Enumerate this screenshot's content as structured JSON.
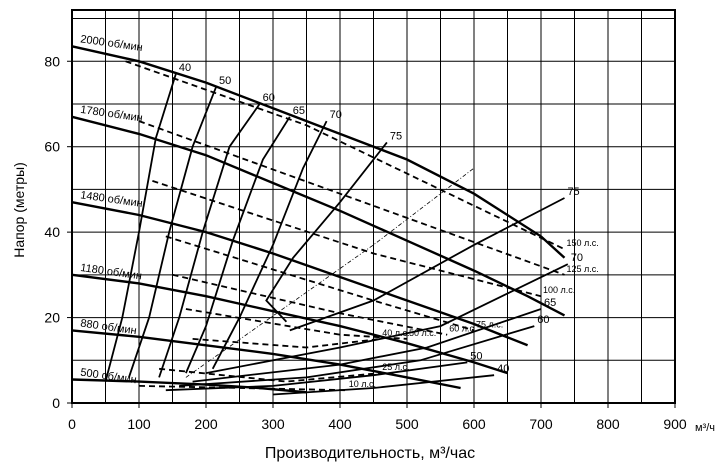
{
  "chart_data": {
    "type": "line",
    "title": "",
    "xlabel": "Производительность, м³/час",
    "ylabel": "Напор (метры)",
    "x_unit_label": "м³/ч",
    "xlim": [
      0,
      900
    ],
    "ylim": [
      0,
      92
    ],
    "x_ticks": [
      0,
      100,
      200,
      300,
      400,
      500,
      600,
      700,
      800,
      900
    ],
    "y_ticks": [
      0,
      20,
      40,
      60,
      80
    ],
    "grid": true,
    "speed_curves": [
      {
        "name": "2000 об/мин",
        "points": [
          [
            0,
            83.5
          ],
          [
            100,
            80
          ],
          [
            200,
            75
          ],
          [
            300,
            69
          ],
          [
            400,
            63
          ],
          [
            500,
            57
          ],
          [
            600,
            49
          ],
          [
            700,
            39
          ],
          [
            735,
            34
          ]
        ]
      },
      {
        "name": "1780 об/мин",
        "points": [
          [
            0,
            67
          ],
          [
            100,
            63
          ],
          [
            200,
            58
          ],
          [
            300,
            51.5
          ],
          [
            400,
            45
          ],
          [
            500,
            38
          ],
          [
            600,
            31
          ],
          [
            680,
            25
          ],
          [
            735,
            20.5
          ]
        ]
      },
      {
        "name": "1480 об/мин",
        "points": [
          [
            0,
            47
          ],
          [
            100,
            44
          ],
          [
            200,
            40
          ],
          [
            300,
            35
          ],
          [
            400,
            29.5
          ],
          [
            500,
            24
          ],
          [
            600,
            18.5
          ],
          [
            680,
            13.5
          ]
        ]
      },
      {
        "name": "1180 об/мин",
        "points": [
          [
            0,
            30
          ],
          [
            100,
            28
          ],
          [
            200,
            25
          ],
          [
            300,
            21.5
          ],
          [
            400,
            18
          ],
          [
            500,
            14
          ],
          [
            600,
            9.5
          ],
          [
            650,
            7
          ]
        ]
      },
      {
        "name": "880 об/мин",
        "points": [
          [
            0,
            17
          ],
          [
            100,
            15.5
          ],
          [
            200,
            13.5
          ],
          [
            300,
            11.5
          ],
          [
            400,
            9
          ],
          [
            500,
            6
          ],
          [
            580,
            3.5
          ]
        ]
      },
      {
        "name": "500 об/мин",
        "points": [
          [
            0,
            5.5
          ],
          [
            100,
            5
          ],
          [
            200,
            4.3
          ],
          [
            280,
            3.5
          ],
          [
            350,
            2.5
          ]
        ]
      }
    ],
    "efficiency_curves": [
      {
        "label": "40",
        "points": [
          [
            50,
            5
          ],
          [
            75,
            20
          ],
          [
            100,
            40
          ],
          [
            125,
            62
          ],
          [
            155,
            77
          ]
        ]
      },
      {
        "label": "50",
        "points": [
          [
            85,
            6
          ],
          [
            115,
            20
          ],
          [
            145,
            40
          ],
          [
            180,
            60
          ],
          [
            215,
            74
          ]
        ]
      },
      {
        "label": "60",
        "points": [
          [
            130,
            6
          ],
          [
            160,
            20
          ],
          [
            195,
            40
          ],
          [
            235,
            60
          ],
          [
            280,
            70
          ]
        ]
      },
      {
        "label": "65",
        "points": [
          [
            170,
            7
          ],
          [
            200,
            18
          ],
          [
            240,
            38
          ],
          [
            285,
            57
          ],
          [
            325,
            67
          ]
        ]
      },
      {
        "label": "70",
        "points": [
          [
            210,
            8
          ],
          [
            250,
            20
          ],
          [
            300,
            37
          ],
          [
            345,
            55
          ],
          [
            380,
            66
          ]
        ]
      },
      {
        "label": "75",
        "points": [
          [
            320,
            19
          ],
          [
            290,
            24
          ],
          [
            330,
            34
          ],
          [
            400,
            47
          ],
          [
            470,
            61
          ]
        ]
      },
      {
        "label": "70",
        "points": [
          [
            200,
            7
          ],
          [
            400,
            13
          ],
          [
            550,
            18
          ],
          [
            740,
            32.5
          ]
        ]
      },
      {
        "label": "75",
        "points": [
          [
            325,
            17
          ],
          [
            450,
            24
          ],
          [
            600,
            37
          ],
          [
            735,
            48
          ]
        ]
      },
      {
        "label": "65",
        "points": [
          [
            180,
            5
          ],
          [
            400,
            9
          ],
          [
            530,
            13
          ],
          [
            700,
            22
          ]
        ]
      },
      {
        "label": "60",
        "points": [
          [
            160,
            4
          ],
          [
            350,
            6
          ],
          [
            520,
            10
          ],
          [
            690,
            18
          ]
        ]
      },
      {
        "label": "50",
        "points": [
          [
            140,
            3
          ],
          [
            300,
            4
          ],
          [
            450,
            6.5
          ],
          [
            590,
            9.5
          ]
        ]
      },
      {
        "label": "40",
        "points": [
          [
            300,
            2
          ],
          [
            450,
            3.5
          ],
          [
            630,
            6.5
          ]
        ]
      }
    ],
    "power_lines": [
      {
        "label": "150 л.с.",
        "points": [
          [
            80,
            80
          ],
          [
            350,
            65
          ],
          [
            735,
            36
          ]
        ]
      },
      {
        "label": "125 л.с.",
        "points": [
          [
            100,
            66
          ],
          [
            400,
            49
          ],
          [
            735,
            30
          ]
        ]
      },
      {
        "label": "100 л.с.",
        "points": [
          [
            120,
            52
          ],
          [
            450,
            35
          ],
          [
            700,
            25
          ]
        ]
      },
      {
        "label": "75 л.с.",
        "points": [
          [
            140,
            39
          ],
          [
            450,
            24
          ],
          [
            600,
            17
          ]
        ]
      },
      {
        "label": "60 л.с.",
        "points": [
          [
            150,
            30
          ],
          [
            400,
            21
          ],
          [
            560,
            16
          ]
        ]
      },
      {
        "label": "50 л.с.",
        "points": [
          [
            170,
            22
          ],
          [
            400,
            16
          ],
          [
            500,
            15
          ]
        ]
      },
      {
        "label": "40 л.с.",
        "points": [
          [
            180,
            15
          ],
          [
            350,
            13
          ],
          [
            460,
            15
          ]
        ]
      },
      {
        "label": "25 л.с.",
        "points": [
          [
            130,
            8
          ],
          [
            320,
            5
          ],
          [
            460,
            7
          ]
        ]
      },
      {
        "label": "10 л.с.",
        "points": [
          [
            100,
            4
          ],
          [
            250,
            3.5
          ],
          [
            410,
            3
          ]
        ]
      }
    ],
    "guide_line": {
      "points": [
        [
          170,
          6
        ],
        [
          450,
          37
        ],
        [
          600,
          55
        ]
      ]
    }
  }
}
